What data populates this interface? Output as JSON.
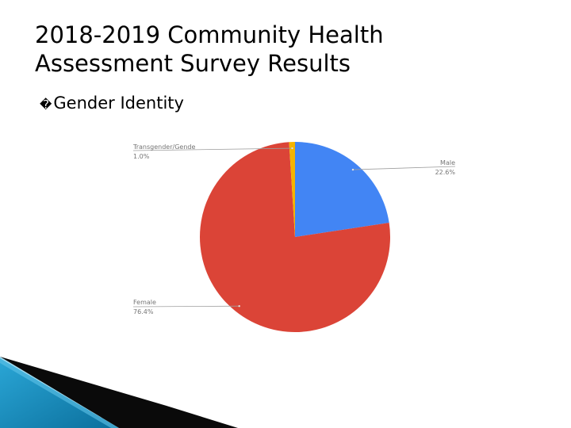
{
  "slide": {
    "title_line1": "2018-2019 Community Health",
    "title_line2": "Assessment Survey Results",
    "bullet_icon": "square-bullet-icon",
    "bullet_glyph": "�",
    "bullet_text": "Gender Identity"
  },
  "chart_data": {
    "type": "pie",
    "categories": [
      "Male",
      "Female",
      "Transgender/Gende"
    ],
    "values": [
      22.6,
      76.4,
      1.0
    ],
    "value_labels": [
      "22.6%",
      "76.4%",
      "1.0%"
    ],
    "colors": [
      "#4285F4",
      "#DB4437",
      "#F4B400"
    ]
  }
}
